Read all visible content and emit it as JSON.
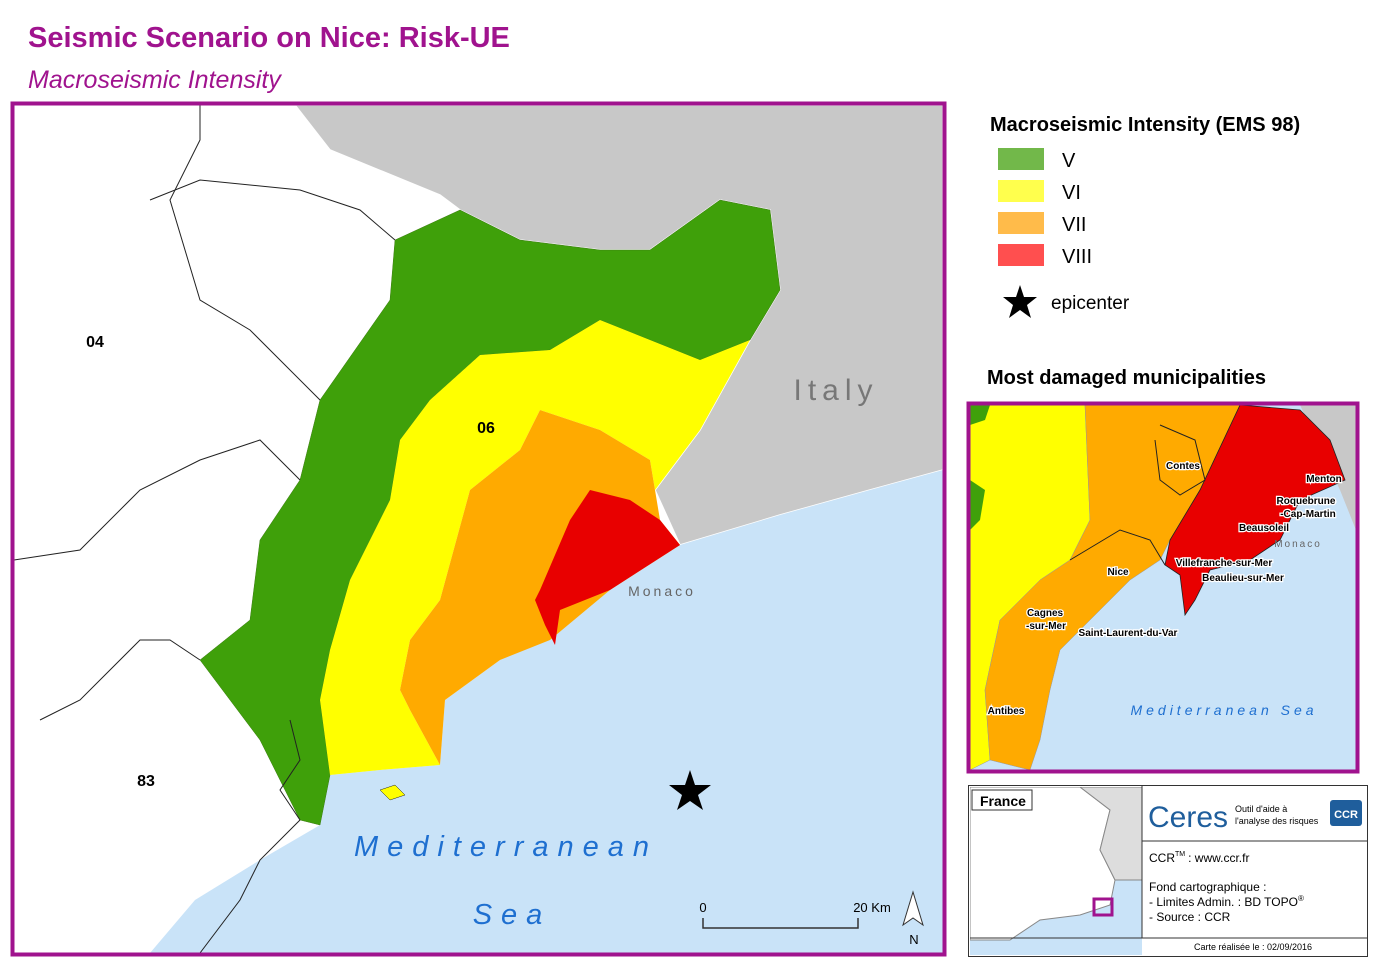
{
  "header": {
    "title": "Seismic Scenario on Nice: Risk-UE",
    "subtitle": "Macroseismic Intensity"
  },
  "legend": {
    "title": "Macroseismic Intensity (EMS 98)",
    "items": [
      {
        "label": "V",
        "color": "#72b84a"
      },
      {
        "label": "VI",
        "color": "#ffff4d"
      },
      {
        "label": "VII",
        "color": "#ffbb4a"
      },
      {
        "label": "VIII",
        "color": "#ff4f4f"
      }
    ],
    "epicenter": "epicenter"
  },
  "map": {
    "country": "Italy",
    "monaco": "Monaco",
    "departments": [
      "04",
      "06",
      "83"
    ],
    "sea_1": "Mediterranean",
    "sea_2": "Sea",
    "scale_start": "0",
    "scale_end": "20 Km",
    "north": "N"
  },
  "inset": {
    "title": "Most damaged municipalities",
    "labels": [
      "Contes",
      "Menton",
      "Roquebrune",
      "-Cap-Martin",
      "Beausoleil",
      "Monaco",
      "Villefranche-sur-Mer",
      "Beaulieu-sur-Mer",
      "Nice",
      "Cagnes",
      "-sur-Mer",
      "Saint-Laurent-du-Var",
      "Antibes"
    ],
    "sea": "Mediterranean Sea"
  },
  "info": {
    "locator": "France",
    "brand": "Ceres",
    "tagline_1": "Outil d'aide à",
    "tagline_2": "l'analyse des risques",
    "logo": "CCR",
    "site_prefix": "CCR",
    "site_tm": "TM",
    "site": ": www.ccr.fr",
    "credits_1": "Fond cartographique :",
    "credits_2": "- Limites Admin. : BD TOPO",
    "credits_2_mark": "®",
    "credits_3": "- Source : CCR",
    "date": "Carte réalisée le : 02/09/2016"
  }
}
